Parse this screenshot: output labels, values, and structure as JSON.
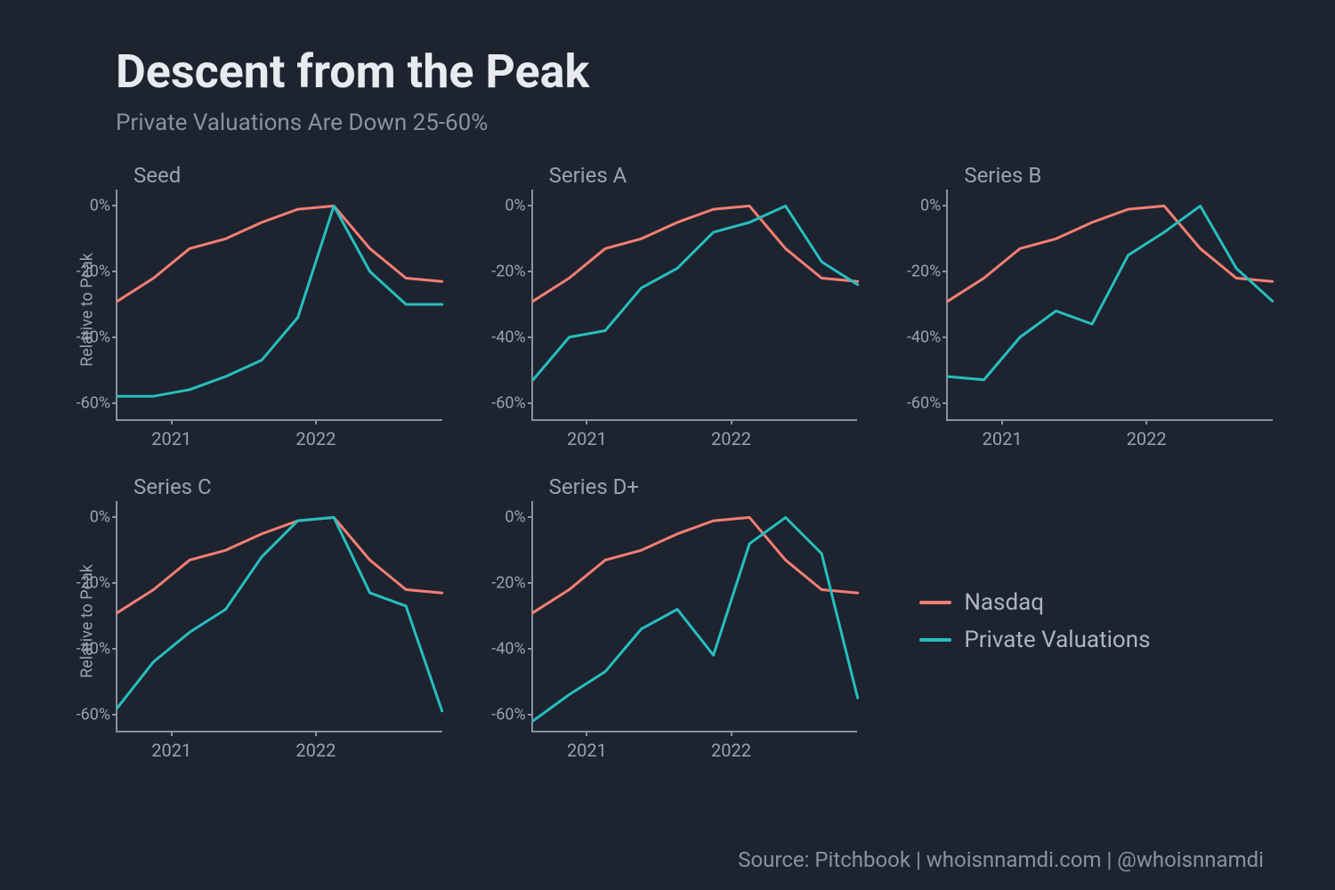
{
  "title": "Descent from the Peak",
  "subtitle": "Private Valuations Are Down 25-60%",
  "source": "Source: Pitchbook | whoisnnamdi.com | @whoisnnamdi",
  "colors": {
    "background": "#1e2330",
    "axis": "#8a91a0",
    "tick_text": "#9aa1b0",
    "title_text": "#e8eaef",
    "subtitle_text": "#8a91a0",
    "nasdaq": "#f47f72",
    "private": "#26bfbf"
  },
  "ylabel": "Relative to Peak",
  "yaxis": {
    "min": -65,
    "max": 5,
    "ticks": [
      0,
      -20,
      -40,
      -60
    ],
    "tick_labels": [
      "0%",
      "-20%",
      "-40%",
      "-60%"
    ]
  },
  "xaxis": {
    "x_values": [
      0,
      1,
      2,
      3,
      4,
      5,
      6,
      7,
      8,
      9
    ],
    "tick_positions": [
      1.5,
      5.5
    ],
    "tick_labels": [
      "2021",
      "2022"
    ]
  },
  "line_width": 3,
  "legend": [
    {
      "label": "Nasdaq",
      "color": "#f47f72"
    },
    {
      "label": "Private Valuations",
      "color": "#26bfbf"
    }
  ],
  "panels": [
    {
      "id": "seed",
      "title": "Seed",
      "show_ylabel": true,
      "series": {
        "nasdaq": [
          -29,
          -22,
          -13,
          -10,
          -5,
          -1,
          0,
          -13,
          -22,
          -23
        ],
        "private": [
          -58,
          -58,
          -56,
          -52,
          -47,
          -34,
          0,
          -20,
          -30,
          -30
        ]
      }
    },
    {
      "id": "series-a",
      "title": "Series A",
      "show_ylabel": false,
      "series": {
        "nasdaq": [
          -29,
          -22,
          -13,
          -10,
          -5,
          -1,
          0,
          -13,
          -22,
          -23
        ],
        "private": [
          -53,
          -40,
          -38,
          -25,
          -19,
          -8,
          -5,
          0,
          -17,
          -24
        ]
      }
    },
    {
      "id": "series-b",
      "title": "Series B",
      "show_ylabel": false,
      "series": {
        "nasdaq": [
          -29,
          -22,
          -13,
          -10,
          -5,
          -1,
          0,
          -13,
          -22,
          -23
        ],
        "private": [
          -52,
          -53,
          -40,
          -32,
          -36,
          -15,
          -8,
          0,
          -19,
          -29
        ]
      }
    },
    {
      "id": "series-c",
      "title": "Series C",
      "show_ylabel": true,
      "series": {
        "nasdaq": [
          -29,
          -22,
          -13,
          -10,
          -5,
          -1,
          0,
          -13,
          -22,
          -23
        ],
        "private": [
          -58,
          -44,
          -35,
          -28,
          -12,
          -1,
          0,
          -23,
          -27,
          -59
        ]
      }
    },
    {
      "id": "series-d",
      "title": "Series D+",
      "show_ylabel": false,
      "series": {
        "nasdaq": [
          -29,
          -22,
          -13,
          -10,
          -5,
          -1,
          0,
          -13,
          -22,
          -23
        ],
        "private": [
          -62,
          -54,
          -47,
          -34,
          -28,
          -42,
          -8,
          0,
          -11,
          -55
        ]
      }
    }
  ]
}
